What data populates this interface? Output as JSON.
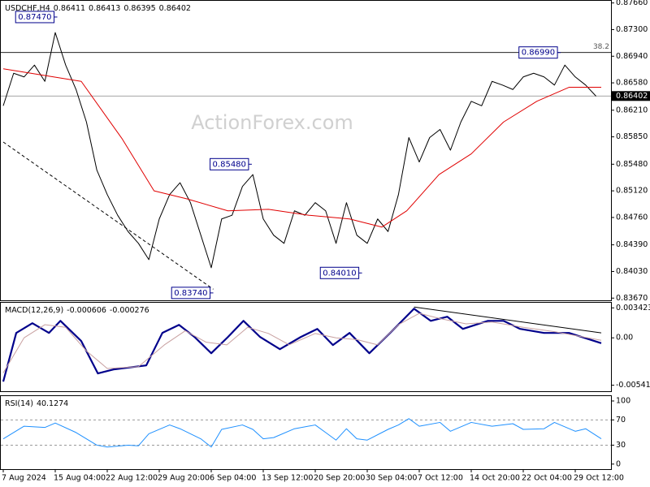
{
  "chart_data": [
    {
      "type": "line",
      "title": "USDCHF,H4",
      "header_values": [
        0.86411,
        0.86413,
        0.86395,
        0.86402
      ],
      "watermark": "ActionForex.com",
      "ylim": [
        0.8364,
        0.877
      ],
      "yticks": [
        {
          "value": 0.8766,
          "label": "0.87660"
        },
        {
          "value": 0.873,
          "label": "0.87300"
        },
        {
          "value": 0.8694,
          "label": "0.86940"
        },
        {
          "value": 0.8658,
          "label": "0.86580"
        },
        {
          "value": 0.8621,
          "label": "0.86210"
        },
        {
          "value": 0.8585,
          "label": "0.85850"
        },
        {
          "value": 0.8548,
          "label": "0.85480"
        },
        {
          "value": 0.8512,
          "label": "0.85120"
        },
        {
          "value": 0.8476,
          "label": "0.84760"
        },
        {
          "value": 0.8439,
          "label": "0.84390"
        },
        {
          "value": 0.8403,
          "label": "0.84030"
        },
        {
          "value": 0.8367,
          "label": "0.83670"
        }
      ],
      "grid": false,
      "series": [
        {
          "color": "#000000",
          "values": [
            0.8627,
            0.8671,
            0.8666,
            0.8682,
            0.866,
            0.8726,
            0.8682,
            0.8649,
            0.8605,
            0.854,
            0.8507,
            0.8479,
            0.8457,
            0.8441,
            0.8419,
            0.8474,
            0.8507,
            0.8523,
            0.8496,
            0.8452,
            0.8408,
            0.8474,
            0.8479,
            0.8518,
            0.8534,
            0.8474,
            0.8452,
            0.8441,
            0.8485,
            0.8479,
            0.8496,
            0.8485,
            0.8441,
            0.8496,
            0.8452,
            0.8441,
            0.8474,
            0.8457,
            0.8507,
            0.8584,
            0.8551,
            0.8584,
            0.8595,
            0.8567,
            0.8605,
            0.8633,
            0.8627,
            0.866,
            0.8655,
            0.8649,
            0.8666,
            0.8671,
            0.8666,
            0.8655,
            0.8682,
            0.8666,
            0.8655,
            0.864
          ]
        },
        {
          "color": "#e00000",
          "x": [
            0,
            7.5,
            11.4,
            14.5,
            17.7,
            21.6,
            25.5,
            29.4,
            33.3,
            36.4,
            38.8,
            41.9,
            45,
            48.1,
            51.3,
            54.4,
            57.5
          ],
          "values": [
            0.8677,
            0.866,
            0.8583,
            0.8512,
            0.8501,
            0.8485,
            0.8487,
            0.8479,
            0.8474,
            0.8463,
            0.8485,
            0.8534,
            0.8562,
            0.8605,
            0.8633,
            0.8652,
            0.8652
          ]
        }
      ],
      "annotations": [
        {
          "x": 5.2,
          "value": 0.8747,
          "label": "0.87470"
        },
        {
          "x": 23.9,
          "value": 0.8548,
          "label": "0.85480"
        },
        {
          "x": 20.2,
          "value": 0.8374,
          "label": "0.83740"
        },
        {
          "x": 34.5,
          "value": 0.8401,
          "label": "0.84010"
        },
        {
          "x": 53.6,
          "value": 0.8699,
          "label": "0.86990"
        }
      ],
      "trendlines": [
        {
          "x": [
            0,
            20.2
          ],
          "values": [
            0.8578,
            0.8379
          ]
        }
      ],
      "level": {
        "value": 0.8699,
        "label": "38.2"
      },
      "last_price": {
        "value": 0.86402,
        "label": "0.86402"
      }
    },
    {
      "type": "line",
      "title": "MACD(12,26,9)",
      "header_values": [
        -0.000606,
        -0.000276
      ],
      "ylim": [
        -0.0061,
        0.0041
      ],
      "yticks": [
        0.003423,
        {
          "value": 0,
          "label": "0.00"
        },
        -0.005414
      ],
      "series": [
        {
          "color": "#00008b",
          "width": 2.2,
          "x": [
            0,
            1.25,
            2.8,
            4.4,
            5.5,
            7.5,
            9.1,
            10.6,
            13.75,
            15.3,
            16.9,
            18.4,
            20,
            21.6,
            23.1,
            24.7,
            26.6,
            28.6,
            30.2,
            31.7,
            33.3,
            35.2,
            37.2,
            39.5,
            41.1,
            42.7,
            44.2,
            46.6,
            48.1,
            49.7,
            52,
            54.4,
            57.5
          ],
          "values": [
            -0.005,
            0.00056,
            0.00167,
            0.00056,
            0.00194,
            -0.00037,
            -0.00407,
            -0.00361,
            -0.00315,
            0.00056,
            0.00148,
            9e-05,
            -0.00176,
            9e-05,
            0.00194,
            9e-05,
            -0.0013,
            9e-05,
            0.00102,
            -0.00083,
            0.00056,
            -0.00176,
            0.00056,
            0.00333,
            0.00194,
            0.00241,
            0.00102,
            0.00194,
            0.00194,
            0.00102,
            0.00056,
            0.00056,
            -0.00061
          ]
        },
        {
          "color": "#c8a0a0",
          "width": 1,
          "x": [
            0,
            2,
            4,
            6,
            8,
            10,
            13,
            15.5,
            17.5,
            19.5,
            21.5,
            23.5,
            25.5,
            27.5,
            30,
            32,
            34,
            36,
            38,
            40,
            42,
            44.5,
            47,
            50,
            53,
            57.5
          ],
          "values": [
            -0.004,
            0.0,
            0.0015,
            0.0012,
            -0.0015,
            -0.0035,
            -0.0033,
            -0.0008,
            0.0008,
            -0.0005,
            -0.0008,
            0.0012,
            0.0005,
            -0.0008,
            0.0005,
            0.0,
            -0.0002,
            -0.0008,
            0.0015,
            0.0028,
            0.0022,
            0.0016,
            0.0018,
            0.0012,
            0.0007,
            -0.00028
          ]
        }
      ],
      "trendlines": [
        {
          "x": [
            39.5,
            57.5
          ],
          "values": [
            0.00352,
            0.00056
          ]
        }
      ]
    },
    {
      "type": "line",
      "title": "RSI(14)",
      "header_values": [
        40.1274
      ],
      "ylim": [
        -8,
        109
      ],
      "yticks": [
        100,
        70,
        30,
        0
      ],
      "levels": [
        70,
        30
      ],
      "series": [
        {
          "color": "#1e90ff",
          "width": 1,
          "x": [
            0,
            2,
            4,
            5,
            7,
            8,
            9,
            10,
            12,
            13,
            14,
            16,
            17,
            19,
            20,
            21,
            23,
            24,
            25,
            26,
            28,
            30,
            31,
            32,
            33,
            34,
            35,
            37,
            38,
            39,
            40,
            42,
            43,
            45,
            47,
            49,
            50,
            52,
            53,
            55,
            56,
            57.5
          ],
          "values": [
            40,
            60,
            58,
            65,
            50,
            40,
            30,
            27,
            30,
            29,
            48,
            62,
            56,
            40,
            27,
            55,
            62,
            55,
            40,
            42,
            56,
            62,
            50,
            38,
            56,
            40,
            38,
            55,
            62,
            72,
            60,
            66,
            52,
            66,
            60,
            64,
            55,
            56,
            66,
            52,
            56,
            40.1274
          ]
        }
      ],
      "xticks": [
        {
          "value": 0,
          "label": "7 Aug 2024"
        },
        {
          "value": 5,
          "label": "15 Aug 04:00"
        },
        {
          "value": 10,
          "label": "22 Aug 12:00"
        },
        {
          "value": 15,
          "label": "29 Aug 20:00"
        },
        {
          "value": 20,
          "label": "6 Sep 04:00"
        },
        {
          "value": 25,
          "label": "13 Sep 12:00"
        },
        {
          "value": 30,
          "label": "20 Sep 20:00"
        },
        {
          "value": 35,
          "label": "30 Sep 04:00"
        },
        {
          "value": 40,
          "label": "7 Oct 12:00"
        },
        {
          "value": 45,
          "label": "14 Oct 20:00"
        },
        {
          "value": 50,
          "label": "22 Oct 04:00"
        },
        {
          "value": 55,
          "label": "29 Oct 12:00"
        }
      ]
    }
  ]
}
